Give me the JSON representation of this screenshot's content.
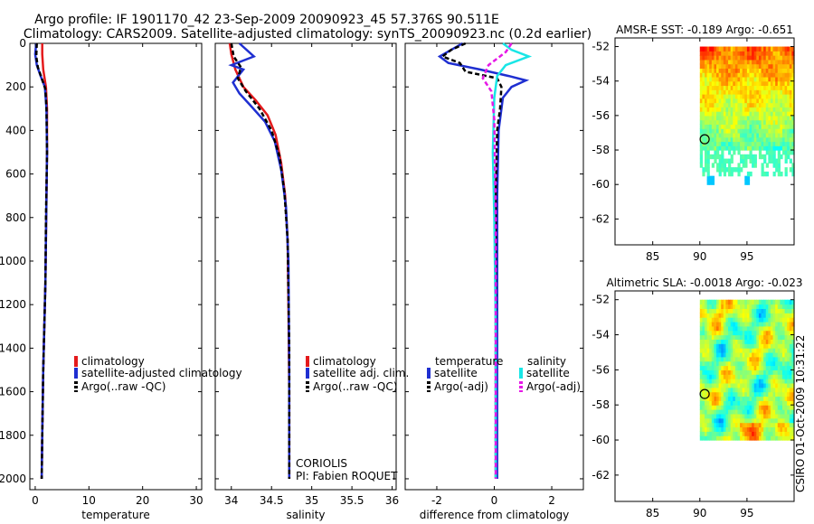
{
  "figure": {
    "title_line1": "Argo profile: IF 1901170_42 23-Sep-2009 20090923_45 57.376S 90.511E",
    "title_line2": "Climatology: CARS2009. Satellite-adjusted climatology: synTS_20090923.nc (0.2d earlier)",
    "timestamp": "CSIRO 01-Oct-2009 10:31:22",
    "colors": {
      "climatology": "#e41a1c",
      "satellite": "#1f2fd1",
      "argo": "#000000",
      "sat_salinity": "#19e6e6",
      "argo_salinity_adj": "#e619e6"
    }
  },
  "chart_data": [
    {
      "type": "line",
      "xlabel": "temperature",
      "ylabel": "",
      "xlim": [
        -1,
        31
      ],
      "ylim": [
        2050,
        0
      ],
      "xticks": [
        "0",
        "10",
        "20",
        "30"
      ],
      "yticks": [
        "0",
        "200",
        "400",
        "600",
        "800",
        "1000",
        "1200",
        "1400",
        "1600",
        "1800",
        "2000"
      ],
      "legend": [
        "climatology",
        "satellite-adjusted climatology",
        "Argo(..raw -QC)"
      ],
      "series": [
        {
          "name": "climatology",
          "x": [
            1.3,
            1.3,
            1.5,
            2.0,
            2.2,
            2.2,
            2.1,
            2.0,
            1.9,
            1.7,
            1.5,
            1.3,
            1.2
          ],
          "y": [
            0,
            50,
            120,
            200,
            300,
            500,
            700,
            900,
            1100,
            1300,
            1500,
            1800,
            2000
          ]
        },
        {
          "name": "satellite-adjusted climatology",
          "x": [
            0.2,
            0.0,
            0.3,
            1.0,
            1.8,
            2.1,
            2.2,
            2.1,
            2.0,
            1.9,
            1.7,
            1.5,
            1.3,
            1.2
          ],
          "y": [
            0,
            50,
            100,
            150,
            200,
            300,
            500,
            700,
            900,
            1100,
            1300,
            1500,
            1800,
            2000
          ]
        },
        {
          "name": "Argo(..raw -QC)",
          "x": [
            0.3,
            0.2,
            0.5,
            1.2,
            1.9,
            2.1,
            2.2,
            2.0,
            1.9,
            1.7,
            1.5,
            1.3,
            1.2
          ],
          "y": [
            0,
            60,
            110,
            160,
            210,
            300,
            500,
            800,
            1100,
            1300,
            1500,
            1800,
            2000
          ]
        }
      ]
    },
    {
      "type": "line",
      "xlabel": "salinity",
      "ylabel": "",
      "xlim": [
        33.8,
        36.05
      ],
      "ylim": [
        2050,
        0
      ],
      "xticks": [
        "34",
        "34.5",
        "35",
        "35.5",
        "36"
      ],
      "legend": [
        "climatology",
        "satellite adj. clim.",
        "Argo(..raw -QC)"
      ],
      "annotation": [
        "CORIOLIS",
        "PI: Fabien ROQUET"
      ],
      "series": [
        {
          "name": "climatology",
          "x": [
            33.98,
            34.0,
            34.05,
            34.15,
            34.3,
            34.45,
            34.55,
            34.62,
            34.67,
            34.7,
            34.71,
            34.72,
            34.72
          ],
          "y": [
            0,
            50,
            120,
            200,
            260,
            330,
            420,
            550,
            700,
            900,
            1200,
            1600,
            2000
          ]
        },
        {
          "name": "satellite adj. clim.",
          "x": [
            34.1,
            34.28,
            34.0,
            34.15,
            34.02,
            34.1,
            34.25,
            34.42,
            34.54,
            34.62,
            34.68,
            34.71,
            34.72,
            34.72
          ],
          "y": [
            0,
            60,
            100,
            120,
            180,
            230,
            290,
            360,
            450,
            580,
            750,
            1000,
            1500,
            2000
          ]
        },
        {
          "name": "Argo(..raw -QC)",
          "x": [
            34.0,
            34.03,
            34.12,
            34.08,
            34.18,
            34.35,
            34.5,
            34.6,
            34.66,
            34.7,
            34.72,
            34.72
          ],
          "y": [
            0,
            60,
            110,
            160,
            220,
            300,
            400,
            520,
            680,
            900,
            1400,
            2000
          ]
        }
      ]
    },
    {
      "type": "line",
      "xlabel": "difference from climatology",
      "ylabel": "",
      "xlim": [
        -3.1,
        3.1
      ],
      "ylim": [
        2050,
        0
      ],
      "xticks": [
        "-2",
        "0",
        "2"
      ],
      "legend_temperature_heading": "temperature",
      "legend_salinity_heading": "salinity",
      "legend": [
        "satellite",
        "Argo(-adj)",
        "satellite",
        "Argo(-adj)"
      ],
      "series": [
        {
          "name": "satellite",
          "group": "temperature",
          "x": [
            -1.1,
            -1.5,
            -1.9,
            -1.6,
            -0.5,
            0.5,
            1.1,
            0.6,
            0.3,
            0.15,
            0.1,
            0.1,
            0.1,
            0.1
          ],
          "y": [
            0,
            30,
            60,
            90,
            120,
            150,
            170,
            200,
            250,
            400,
            700,
            1000,
            1500,
            2000
          ]
        },
        {
          "name": "Argo(-adj)",
          "group": "temperature",
          "x": [
            -1.0,
            -1.5,
            -1.8,
            -1.2,
            -1.0,
            0.1,
            0.25,
            0.2,
            0.1,
            0.05,
            0.05,
            0.05
          ],
          "y": [
            0,
            30,
            60,
            90,
            130,
            160,
            200,
            300,
            400,
            700,
            1300,
            2000
          ]
        },
        {
          "name": "satellite",
          "group": "salinity",
          "x": [
            0.3,
            0.6,
            1.2,
            0.4,
            0.1,
            0.0,
            -0.05,
            0.0,
            0.05,
            0.05
          ],
          "y": [
            0,
            30,
            60,
            100,
            150,
            250,
            500,
            800,
            1300,
            2000
          ]
        },
        {
          "name": "Argo(-adj)",
          "group": "salinity",
          "x": [
            0.6,
            0.4,
            -0.2,
            -0.4,
            -0.1,
            0.0,
            0.05,
            0.05
          ],
          "y": [
            0,
            40,
            100,
            160,
            220,
            350,
            800,
            2000
          ]
        }
      ]
    },
    {
      "type": "heatmap",
      "title": "AMSR-E SST: -0.189 Argo: -0.651",
      "xlim": [
        81,
        100
      ],
      "ylim": [
        -63.5,
        -51.5
      ],
      "xticks": [
        "85",
        "90",
        "95"
      ],
      "yticks": [
        "-52",
        "-54",
        "-56",
        "-58",
        "-60",
        "-62"
      ],
      "data_extent": {
        "lon": [
          90,
          100
        ],
        "lat": [
          -60,
          -52
        ]
      },
      "float_position": {
        "lon": 90.511,
        "lat": -57.376
      }
    },
    {
      "type": "heatmap",
      "title": "Altimetric SLA: -0.0018 Argo: -0.023",
      "xlim": [
        81,
        100
      ],
      "ylim": [
        -63.5,
        -51.5
      ],
      "xticks": [
        "85",
        "90",
        "95"
      ],
      "yticks": [
        "-52",
        "-54",
        "-56",
        "-58",
        "-60",
        "-62"
      ],
      "data_extent": {
        "lon": [
          90,
          100
        ],
        "lat": [
          -60,
          -52
        ]
      },
      "float_position": {
        "lon": 90.511,
        "lat": -57.376
      }
    }
  ]
}
